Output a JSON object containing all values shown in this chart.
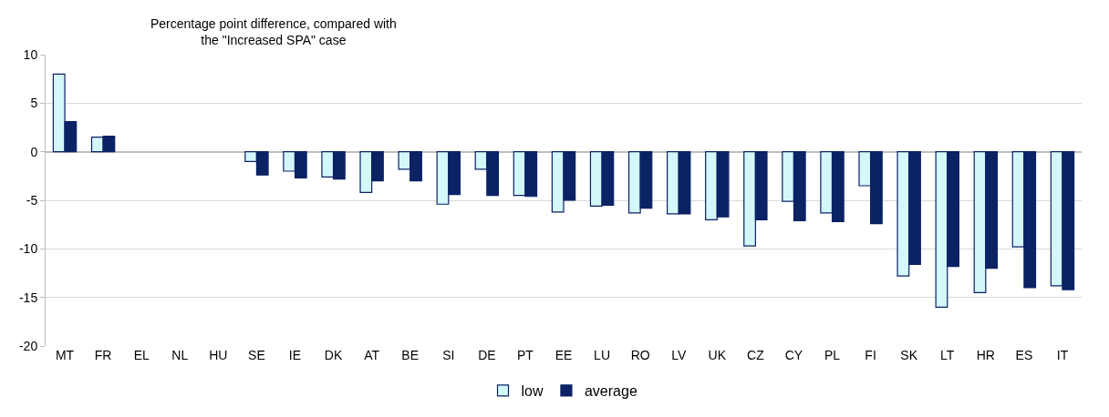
{
  "chart_data": {
    "type": "bar",
    "ylabel": "Percentage point difference, compared with\nthe \"Increased SPA\" case",
    "categories": [
      "MT",
      "FR",
      "EL",
      "NL",
      "HU",
      "SE",
      "IE",
      "DK",
      "AT",
      "BE",
      "SI",
      "DE",
      "PT",
      "EE",
      "LU",
      "RO",
      "LV",
      "UK",
      "CZ",
      "CY",
      "PL",
      "FI",
      "SK",
      "LT",
      "HR",
      "ES",
      "IT"
    ],
    "series": [
      {
        "name": "low",
        "color": "#d4f7fa",
        "values": [
          8.0,
          1.5,
          null,
          null,
          null,
          -1.0,
          -2.0,
          -2.6,
          -4.2,
          -1.8,
          -5.4,
          -1.8,
          -4.5,
          -6.2,
          -5.6,
          -6.3,
          -6.4,
          -7.0,
          -9.7,
          -5.1,
          -6.3,
          -3.5,
          -12.8,
          -16.0,
          -14.5,
          -9.8,
          -13.8
        ]
      },
      {
        "name": "average",
        "color": "#0b2265",
        "values": [
          3.1,
          1.6,
          null,
          null,
          null,
          -2.4,
          -2.7,
          -2.8,
          -3.0,
          -3.0,
          -4.4,
          -4.5,
          -4.6,
          -5.0,
          -5.5,
          -5.8,
          -6.4,
          -6.7,
          -7.0,
          -7.1,
          -7.2,
          -7.4,
          -11.6,
          -11.8,
          -12.0,
          -14.0,
          -14.2
        ]
      }
    ],
    "ylim": [
      -20,
      10
    ],
    "yticks": [
      -20,
      -15,
      -10,
      -5,
      0,
      5,
      10
    ],
    "grid": "y",
    "legend": "bottom"
  }
}
